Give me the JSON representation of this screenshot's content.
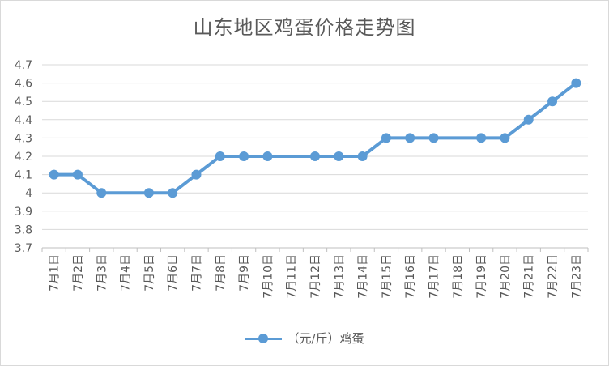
{
  "chart_data": {
    "type": "line",
    "title": "山东地区鸡蛋价格走势图",
    "xlabel": "",
    "ylabel": "",
    "ylim": [
      3.7,
      4.7
    ],
    "yticks": [
      "3.7",
      "3.8",
      "3.9",
      "4",
      "4.1",
      "4.2",
      "4.3",
      "4.4",
      "4.5",
      "4.6",
      "4.7"
    ],
    "grid": true,
    "legend_position": "bottom",
    "categories": [
      "7月1日",
      "7月2日",
      "7月3日",
      "7月4日",
      "7月5日",
      "7月6日",
      "7月7日",
      "7月8日",
      "7月9日",
      "7月10日",
      "7月11日",
      "7月12日",
      "7月13日",
      "7月14日",
      "7月15日",
      "7月16日",
      "7月17日",
      "7月18日",
      "7月19日",
      "7月20日",
      "7月21日",
      "7月22日",
      "7月23日"
    ],
    "series": [
      {
        "name": "（元/斤）鸡蛋",
        "color": "#5b9bd5",
        "points": [
          {
            "x": "7月1日",
            "y": 4.1
          },
          {
            "x": "7月2日",
            "y": 4.1
          },
          {
            "x": "7月3日",
            "y": 4.0
          },
          {
            "x": "7月5日",
            "y": 4.0
          },
          {
            "x": "7月6日",
            "y": 4.0
          },
          {
            "x": "7月7日",
            "y": 4.1
          },
          {
            "x": "7月8日",
            "y": 4.2
          },
          {
            "x": "7月9日",
            "y": 4.2
          },
          {
            "x": "7月10日",
            "y": 4.2
          },
          {
            "x": "7月12日",
            "y": 4.2
          },
          {
            "x": "7月13日",
            "y": 4.2
          },
          {
            "x": "7月14日",
            "y": 4.2
          },
          {
            "x": "7月15日",
            "y": 4.3
          },
          {
            "x": "7月16日",
            "y": 4.3
          },
          {
            "x": "7月17日",
            "y": 4.3
          },
          {
            "x": "7月19日",
            "y": 4.3
          },
          {
            "x": "7月20日",
            "y": 4.3
          },
          {
            "x": "7月21日",
            "y": 4.4
          },
          {
            "x": "7月22日",
            "y": 4.5
          },
          {
            "x": "7月23日",
            "y": 4.6
          }
        ]
      }
    ]
  }
}
